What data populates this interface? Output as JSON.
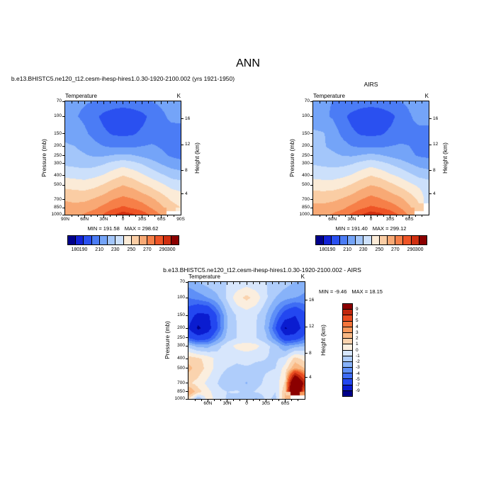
{
  "page_title": "ANN",
  "chart_data": [
    {
      "type": "heatmap",
      "name": "model-temperature",
      "title": "b.e13.BHISTC5.ne120_t12.cesm-ihesp-hires1.0.30-1920-2100.002 (yrs 1921-1950)",
      "field_label": "Temperature",
      "units_label": "K",
      "ylabel": "Pressure (mb)",
      "ylabel_right": "Height (km)",
      "min_label": "MIN = 191.58",
      "max_label": "MAX = 298.62",
      "y_scale": "log",
      "pressure_ticks": [
        70,
        100,
        150,
        200,
        250,
        300,
        400,
        500,
        700,
        850,
        1000
      ],
      "height_ticks": [
        {
          "km": "16",
          "frac": 0.155
        },
        {
          "km": "12",
          "frac": 0.383
        },
        {
          "km": "8",
          "frac": 0.612
        },
        {
          "km": "4",
          "frac": 0.818
        }
      ],
      "x_tick_labels": [
        {
          "label": "90N",
          "lat": 90
        },
        {
          "label": "60N",
          "lat": 60
        },
        {
          "label": "30N",
          "lat": 30
        },
        {
          "label": "0",
          "lat": 0
        },
        {
          "label": "30S",
          "lat": -30
        },
        {
          "label": "60S",
          "lat": -60
        },
        {
          "label": "90S",
          "lat": -90
        }
      ],
      "x_lats": [
        90,
        75,
        60,
        45,
        30,
        15,
        0,
        -15,
        -30,
        -45,
        -60,
        -75,
        -90
      ],
      "y_pressures": [
        70,
        100,
        150,
        200,
        250,
        300,
        400,
        500,
        700,
        850,
        1000
      ],
      "levels": [
        180,
        190,
        200,
        210,
        220,
        230,
        240,
        250,
        260,
        270,
        280,
        290,
        300
      ],
      "colors": [
        "#00008B",
        "#1222D6",
        "#2A50F0",
        "#4B7CF5",
        "#74A4F8",
        "#A3C6FA",
        "#CCE0FB",
        "#FBEBD7",
        "#FACDA4",
        "#F8A975",
        "#F67F48",
        "#EE5426",
        "#D02F10",
        "#8B0000"
      ],
      "colorbar_labels": [
        {
          "label": "180",
          "boundary": 1
        },
        {
          "label": "190",
          "boundary": 2
        },
        {
          "label": "210",
          "boundary": 4
        },
        {
          "label": "230",
          "boundary": 6
        },
        {
          "label": "250",
          "boundary": 8
        },
        {
          "label": "270",
          "boundary": 10
        },
        {
          "label": "290",
          "boundary": 12
        },
        {
          "label": "300",
          "boundary": 13
        }
      ],
      "values": [
        [
          213,
          212,
          211,
          210,
          208,
          206,
          205,
          206,
          208,
          210,
          212,
          213,
          214
        ],
        [
          213,
          211,
          208,
          203,
          197,
          194,
          193,
          194,
          197,
          203,
          208,
          212,
          214
        ],
        [
          218,
          216,
          212,
          207,
          202,
          199,
          198,
          199,
          202,
          205,
          207,
          206,
          204
        ],
        [
          221,
          220,
          217,
          213,
          210,
          208,
          208,
          208,
          210,
          211,
          209,
          206,
          204
        ],
        [
          224,
          223,
          221,
          219,
          219,
          221,
          222,
          221,
          218,
          215,
          212,
          209,
          207
        ],
        [
          228,
          227,
          226,
          226,
          229,
          233,
          236,
          233,
          229,
          224,
          219,
          215,
          213
        ],
        [
          238,
          237,
          236,
          238,
          241,
          246,
          250,
          247,
          242,
          237,
          232,
          227,
          225
        ],
        [
          247,
          246,
          245,
          247,
          251,
          256,
          260,
          257,
          252,
          247,
          242,
          237,
          235
        ],
        [
          259,
          258,
          258,
          261,
          265,
          270,
          273,
          271,
          267,
          262,
          256,
          249,
          246
        ],
        [
          264,
          263,
          265,
          268,
          273,
          278,
          282,
          279,
          275,
          269,
          262,
          254,
          250
        ],
        [
          269,
          268,
          271,
          275,
          281,
          289,
          296,
          292,
          286,
          278,
          269,
          null,
          null
        ]
      ]
    },
    {
      "type": "heatmap",
      "name": "airs-temperature",
      "title": "AIRS",
      "field_label": "Temperature",
      "units_label": "K",
      "ylabel": "Pressure (mb)",
      "ylabel_right": "Height (km)",
      "min_label": "MIN = 191.40",
      "max_label": "MAX = 299.12",
      "y_scale": "log",
      "pressure_ticks": [
        70,
        100,
        150,
        200,
        250,
        300,
        400,
        500,
        700,
        850,
        1000
      ],
      "height_ticks": [
        {
          "km": "16",
          "frac": 0.155
        },
        {
          "km": "12",
          "frac": 0.383
        },
        {
          "km": "8",
          "frac": 0.612
        },
        {
          "km": "4",
          "frac": 0.818
        }
      ],
      "x_tick_labels": [
        {
          "label": "60N",
          "lat": 60
        },
        {
          "label": "30N",
          "lat": 30
        },
        {
          "label": "0",
          "lat": 0
        },
        {
          "label": "30S",
          "lat": -30
        },
        {
          "label": "60S",
          "lat": -60
        }
      ],
      "x_lats": [
        90,
        75,
        60,
        45,
        30,
        15,
        0,
        -15,
        -30,
        -45,
        -60,
        -75,
        -90
      ],
      "y_pressures": [
        70,
        100,
        150,
        200,
        250,
        300,
        400,
        500,
        700,
        850,
        1000
      ],
      "levels": [
        180,
        190,
        200,
        210,
        220,
        230,
        240,
        250,
        260,
        270,
        280,
        290,
        300
      ],
      "colors": [
        "#00008B",
        "#1222D6",
        "#2A50F0",
        "#4B7CF5",
        "#74A4F8",
        "#A3C6FA",
        "#CCE0FB",
        "#FBEBD7",
        "#FACDA4",
        "#F8A975",
        "#F67F48",
        "#EE5426",
        "#D02F10",
        "#8B0000"
      ],
      "colorbar_labels": [
        {
          "label": "180",
          "boundary": 1
        },
        {
          "label": "190",
          "boundary": 2
        },
        {
          "label": "210",
          "boundary": 4
        },
        {
          "label": "230",
          "boundary": 6
        },
        {
          "label": "250",
          "boundary": 8
        },
        {
          "label": "270",
          "boundary": 10
        },
        {
          "label": "290",
          "boundary": 12
        },
        {
          "label": "300",
          "boundary": 13
        }
      ],
      "values": [
        [
          212,
          211,
          210,
          209,
          207,
          205,
          204,
          205,
          207,
          210,
          212,
          214,
          215
        ],
        [
          214,
          212,
          209,
          203,
          197,
          194,
          193,
          194,
          197,
          203,
          209,
          213,
          215
        ],
        [
          222,
          221,
          216,
          208,
          202,
          199,
          198,
          199,
          202,
          206,
          208,
          207,
          205
        ],
        [
          222,
          221,
          218,
          214,
          210,
          208,
          208,
          208,
          210,
          211,
          210,
          207,
          205
        ],
        [
          224,
          223,
          222,
          220,
          219,
          221,
          223,
          221,
          218,
          215,
          212,
          209,
          208
        ],
        [
          229,
          228,
          227,
          227,
          229,
          233,
          236,
          233,
          229,
          225,
          220,
          216,
          214
        ],
        [
          237,
          236,
          236,
          238,
          241,
          246,
          250,
          247,
          242,
          238,
          233,
          228,
          226
        ],
        [
          246,
          245,
          245,
          247,
          251,
          256,
          260,
          258,
          253,
          248,
          243,
          238,
          235
        ],
        [
          257,
          257,
          258,
          261,
          265,
          270,
          274,
          271,
          267,
          263,
          256,
          248,
          232
        ],
        [
          263,
          263,
          265,
          268,
          273,
          278,
          282,
          280,
          276,
          270,
          262,
          252,
          null
        ],
        [
          268,
          268,
          271,
          275,
          282,
          290,
          297,
          293,
          287,
          279,
          268,
          null,
          null
        ]
      ]
    },
    {
      "type": "heatmap",
      "name": "model-minus-airs-difference",
      "title": "b.e13.BHISTC5.ne120_t12.cesm-ihesp-hires1.0.30-1920-2100.002 - AIRS",
      "field_label": "Temperature",
      "units_label": "K",
      "ylabel": "Pressure (mb)",
      "ylabel_right": "Height (km)",
      "min_label": "MIN =  -9.46",
      "max_label": "MAX =  18.15",
      "y_scale": "log",
      "pressure_ticks": [
        70,
        100,
        150,
        200,
        250,
        300,
        400,
        500,
        700,
        850,
        1000
      ],
      "height_ticks": [
        {
          "km": "16",
          "frac": 0.155
        },
        {
          "km": "12",
          "frac": 0.383
        },
        {
          "km": "8",
          "frac": 0.612
        },
        {
          "km": "4",
          "frac": 0.818
        }
      ],
      "x_tick_labels": [
        {
          "label": "60N",
          "lat": 60
        },
        {
          "label": "30N",
          "lat": 30
        },
        {
          "label": "0",
          "lat": 0
        },
        {
          "label": "30S",
          "lat": -30
        },
        {
          "label": "60S",
          "lat": -60
        }
      ],
      "x_lats": [
        90,
        75,
        60,
        45,
        30,
        15,
        0,
        -15,
        -30,
        -45,
        -60,
        -75,
        -90
      ],
      "y_pressures": [
        70,
        100,
        150,
        200,
        250,
        300,
        400,
        500,
        700,
        850,
        1000
      ],
      "levels": [
        -9,
        -7,
        -5,
        -4,
        -3,
        -2,
        -1,
        0,
        1,
        2,
        3,
        4,
        5,
        7,
        9
      ],
      "colors": [
        "#00008B",
        "#0A1CD0",
        "#2347F0",
        "#3E6CF4",
        "#5E8FF7",
        "#87B2F9",
        "#AFCDFB",
        "#D7E6FC",
        "#FBEEDE",
        "#FAD3AE",
        "#F9B884",
        "#F7985B",
        "#F4753A",
        "#E84B20",
        "#C0270D",
        "#8B0000"
      ],
      "colorbar_labels": [
        {
          "label": "9",
          "boundary": 1
        },
        {
          "label": "7",
          "boundary": 2
        },
        {
          "label": "5",
          "boundary": 3
        },
        {
          "label": "4",
          "boundary": 4
        },
        {
          "label": "3",
          "boundary": 5
        },
        {
          "label": "2",
          "boundary": 6
        },
        {
          "label": "1",
          "boundary": 7
        },
        {
          "label": "0",
          "boundary": 8
        },
        {
          "label": "-1",
          "boundary": 9
        },
        {
          "label": "-2",
          "boundary": 10
        },
        {
          "label": "-3",
          "boundary": 11
        },
        {
          "label": "-4",
          "boundary": 12
        },
        {
          "label": "-5",
          "boundary": 13
        },
        {
          "label": "-7",
          "boundary": 14
        },
        {
          "label": "-9",
          "boundary": 15
        }
      ],
      "values": [
        [
          -2.5,
          -2,
          -1.5,
          -1.2,
          -1,
          -0.8,
          -0.6,
          -0.8,
          -1,
          -1.3,
          -1.6,
          -2,
          -2.6
        ],
        [
          -4,
          -3.5,
          -3,
          -2.2,
          -0.8,
          0.6,
          1.3,
          0.6,
          -0.8,
          -2,
          -2.6,
          -3,
          -3.2
        ],
        [
          -6,
          -7.6,
          -7.4,
          -4.8,
          -2,
          -0.9,
          -0.6,
          -0.9,
          -2,
          -3.8,
          -6,
          -7,
          -5.4
        ],
        [
          -7,
          -9.4,
          -8,
          -5,
          -2,
          -1,
          -0.7,
          -1,
          -2.2,
          -5,
          -9.2,
          -8.4,
          -6
        ],
        [
          -5,
          -6.2,
          -5.6,
          -3.4,
          -1.6,
          -1,
          -0.8,
          -1,
          -1.8,
          -3.6,
          -6.2,
          -6,
          -4.4
        ],
        [
          -1.4,
          -2.4,
          -2.4,
          -1.4,
          -0.4,
          0.3,
          0.6,
          0.3,
          -0.6,
          -1.6,
          -3,
          -2.4,
          -2
        ],
        [
          1.6,
          1.2,
          0.6,
          -0.4,
          -0.7,
          -0.8,
          -0.7,
          -0.9,
          -1,
          -1.2,
          -0.6,
          1.4,
          0.6
        ],
        [
          2.3,
          1.6,
          0.6,
          -0.5,
          -1,
          -1.2,
          -1.1,
          -1.2,
          -1.1,
          -1,
          0.5,
          3,
          2
        ],
        [
          1.2,
          0.6,
          -0.3,
          -1,
          -1.9,
          -1.4,
          -2.1,
          -1.3,
          -0.8,
          -0.6,
          1.2,
          16,
          8
        ],
        [
          3.3,
          1.4,
          0.3,
          -0.6,
          -1,
          -0.9,
          -1.2,
          -0.9,
          -0.6,
          -1,
          2,
          18.1,
          4
        ],
        [
          1.2,
          -2.2,
          0.6,
          -0.5,
          -1.1,
          -1.3,
          -1.2,
          -2.2,
          -0.8,
          -1.2,
          2.2,
          null,
          null
        ]
      ]
    }
  ]
}
